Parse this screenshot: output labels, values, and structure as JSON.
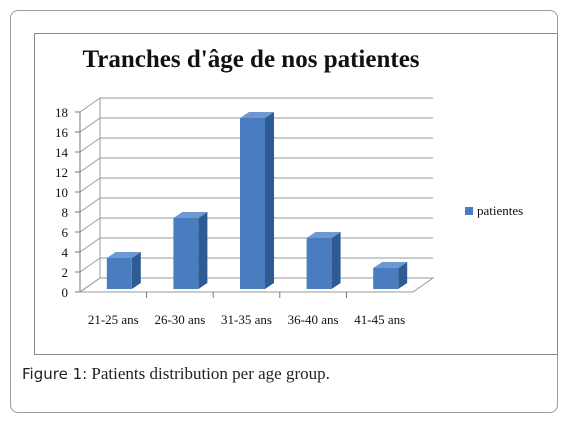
{
  "chart_data": {
    "type": "bar",
    "title": "Tranches d'âge de nos patientes",
    "categories": [
      "21-25 ans",
      "26-30 ans",
      "31-35 ans",
      "36-40 ans",
      "41-45 ans"
    ],
    "series": [
      {
        "name": "patientes",
        "values": [
          3,
          7,
          17,
          5,
          2
        ]
      }
    ],
    "yticks": [
      "0",
      "2",
      "4",
      "6",
      "8",
      "10",
      "12",
      "14",
      "16",
      "18"
    ],
    "ylim": [
      0,
      18
    ],
    "grid": true,
    "legend": "right",
    "bar_color": "#4a7cc0",
    "bar_side_color": "#2f5b95",
    "bar_top_color": "#6d98d2"
  },
  "caption": {
    "label": "Figure 1:",
    "text": " Patients distribution per age group."
  }
}
